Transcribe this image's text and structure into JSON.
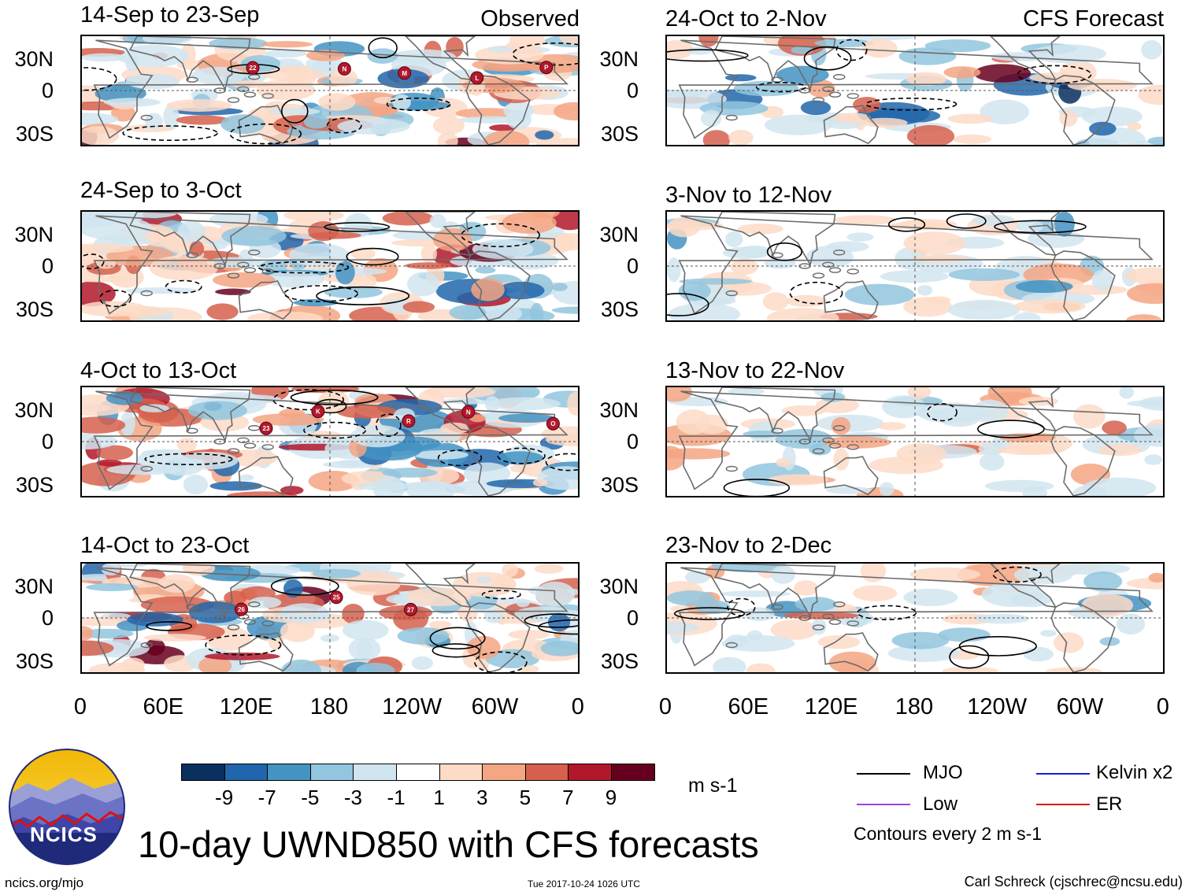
{
  "title": "10-day UWND850 with CFS forecasts",
  "observed_label": "Observed",
  "forecast_label": "CFS Forecast",
  "chart_data": {
    "type": "heatmap",
    "variable": "UWND850",
    "units": "m s-1",
    "colorbar": {
      "levels": [
        "-9",
        "-7",
        "-5",
        "-3",
        "-1",
        "1",
        "3",
        "5",
        "7",
        "9"
      ],
      "colors": [
        "#0b2f5e",
        "#2166ac",
        "#4393c3",
        "#92c5de",
        "#d1e5f0",
        "#ffffff",
        "#fddbc7",
        "#f4a582",
        "#d6604d",
        "#b2182b",
        "#67001f"
      ]
    },
    "xaxis": {
      "ticks": [
        "0",
        "60E",
        "120E",
        "180",
        "120W",
        "60W",
        "0"
      ]
    },
    "yaxis": {
      "ticks": [
        "30N",
        "0",
        "30S"
      ]
    },
    "panels": [
      {
        "title": "14-Sep to 23-Sep",
        "column": "observed",
        "storms": [
          "22",
          "N",
          "M",
          "L",
          "P"
        ]
      },
      {
        "title": "24-Sep to 3-Oct",
        "column": "observed",
        "storms": []
      },
      {
        "title": "4-Oct to 13-Oct",
        "column": "observed",
        "storms": [
          "23",
          "K",
          "R",
          "N",
          "O"
        ]
      },
      {
        "title": "14-Oct to 23-Oct",
        "column": "observed",
        "storms": [
          "26",
          "25",
          "27"
        ]
      },
      {
        "title": "24-Oct to 2-Nov",
        "column": "forecast",
        "storms": []
      },
      {
        "title": "3-Nov to 12-Nov",
        "column": "forecast",
        "storms": []
      },
      {
        "title": "13-Nov to 22-Nov",
        "column": "forecast",
        "storms": []
      },
      {
        "title": "23-Nov to 2-Dec",
        "column": "forecast",
        "storms": []
      }
    ]
  },
  "legend": {
    "items": [
      {
        "label": "MJO",
        "color": "#000000"
      },
      {
        "label": "Kelvin x2",
        "color": "#1a1adb"
      },
      {
        "label": "Low",
        "color": "#a040e0"
      },
      {
        "label": "ER",
        "color": "#e01010"
      }
    ],
    "contour_note": "Contours every 2 m s-1"
  },
  "logo_text": "NCICS",
  "footer": {
    "url": "ncics.org/mjo",
    "timestamp": "Tue 2017-10-24 1026 UTC",
    "credit": "Carl Schreck (cjschrec@ncsu.edu)"
  }
}
